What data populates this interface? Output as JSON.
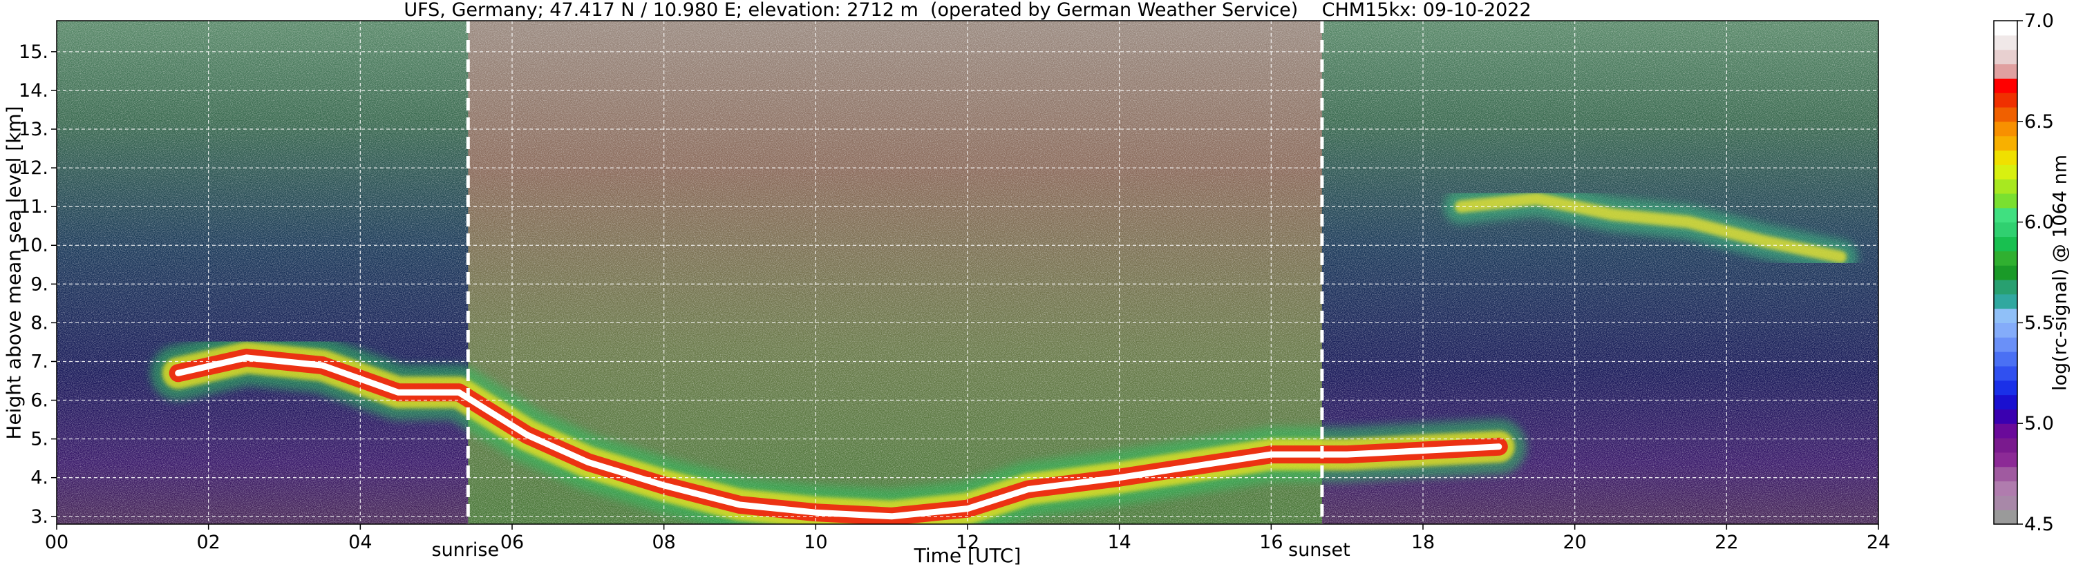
{
  "chart_data": {
    "type": "heatmap",
    "title": "UFS, Germany; 47.417 N / 10.980 E; elevation: 2712 m  (operated by German Weather Service)    CHM15kx: 09-10-2022",
    "xlabel": "Time [UTC]",
    "ylabel": "Height above mean sea level [km]",
    "xlim": [
      0,
      24
    ],
    "ylim": [
      2.8,
      15.8
    ],
    "x_ticks": [
      "00",
      "02",
      "04",
      "06",
      "08",
      "10",
      "12",
      "14",
      "16",
      "18",
      "20",
      "22",
      "24"
    ],
    "y_ticks": [
      "3.",
      "4.",
      "5.",
      "6.",
      "7.",
      "8.",
      "9.",
      "10.",
      "11.",
      "12.",
      "13.",
      "14.",
      "15."
    ],
    "grid": true,
    "annotations": [
      {
        "label": "sunrise",
        "x": 5.42
      },
      {
        "label": "sunset",
        "x": 16.67
      }
    ],
    "colorbar": {
      "label": "log(rc-signal) @ 1064 nm",
      "range": [
        4.5,
        7.0
      ],
      "ticks": [
        "4.5",
        "5.0",
        "5.5",
        "6.0",
        "6.5",
        "7.0"
      ],
      "colors": [
        "#9a9a9a",
        "#a888a8",
        "#b07cae",
        "#a05aa0",
        "#8c2a96",
        "#7a1a8e",
        "#6a0a9a",
        "#3a00b0",
        "#1a10d0",
        "#1a30e8",
        "#3050f0",
        "#4a70f4",
        "#6a90f8",
        "#84acfa",
        "#90c0f8",
        "#30a8a0",
        "#28a070",
        "#1a9a28",
        "#30b030",
        "#18c050",
        "#30d070",
        "#40e080",
        "#7ae030",
        "#a8e820",
        "#d8f010",
        "#f0e000",
        "#f8b000",
        "#f89000",
        "#f06000",
        "#f03000",
        "#ff0000",
        "#e0a0a0",
        "#e8d0d0",
        "#f0e8e8",
        "#ffffff"
      ]
    },
    "layers": [
      {
        "kind": "cloud",
        "points": [
          [
            1.6,
            6.7
          ],
          [
            2.5,
            7.1
          ],
          [
            3.5,
            6.9
          ],
          [
            4.5,
            6.2
          ],
          [
            5.3,
            6.2
          ],
          [
            6.2,
            5.1
          ],
          [
            7.0,
            4.4
          ],
          [
            8.0,
            3.8
          ],
          [
            9.0,
            3.3
          ],
          [
            10.0,
            3.1
          ],
          [
            11.0,
            3.0
          ],
          [
            12.0,
            3.2
          ],
          [
            12.8,
            3.7
          ],
          [
            14.0,
            4.0
          ],
          [
            15.0,
            4.3
          ],
          [
            16.0,
            4.6
          ],
          [
            17.0,
            4.6
          ],
          [
            18.0,
            4.7
          ],
          [
            19.0,
            4.8
          ]
        ]
      },
      {
        "kind": "cirrus",
        "points": [
          [
            18.5,
            11.0
          ],
          [
            19.5,
            11.2
          ],
          [
            20.5,
            10.8
          ],
          [
            21.5,
            10.6
          ],
          [
            22.5,
            10.1
          ],
          [
            23.5,
            9.7
          ]
        ]
      }
    ]
  }
}
